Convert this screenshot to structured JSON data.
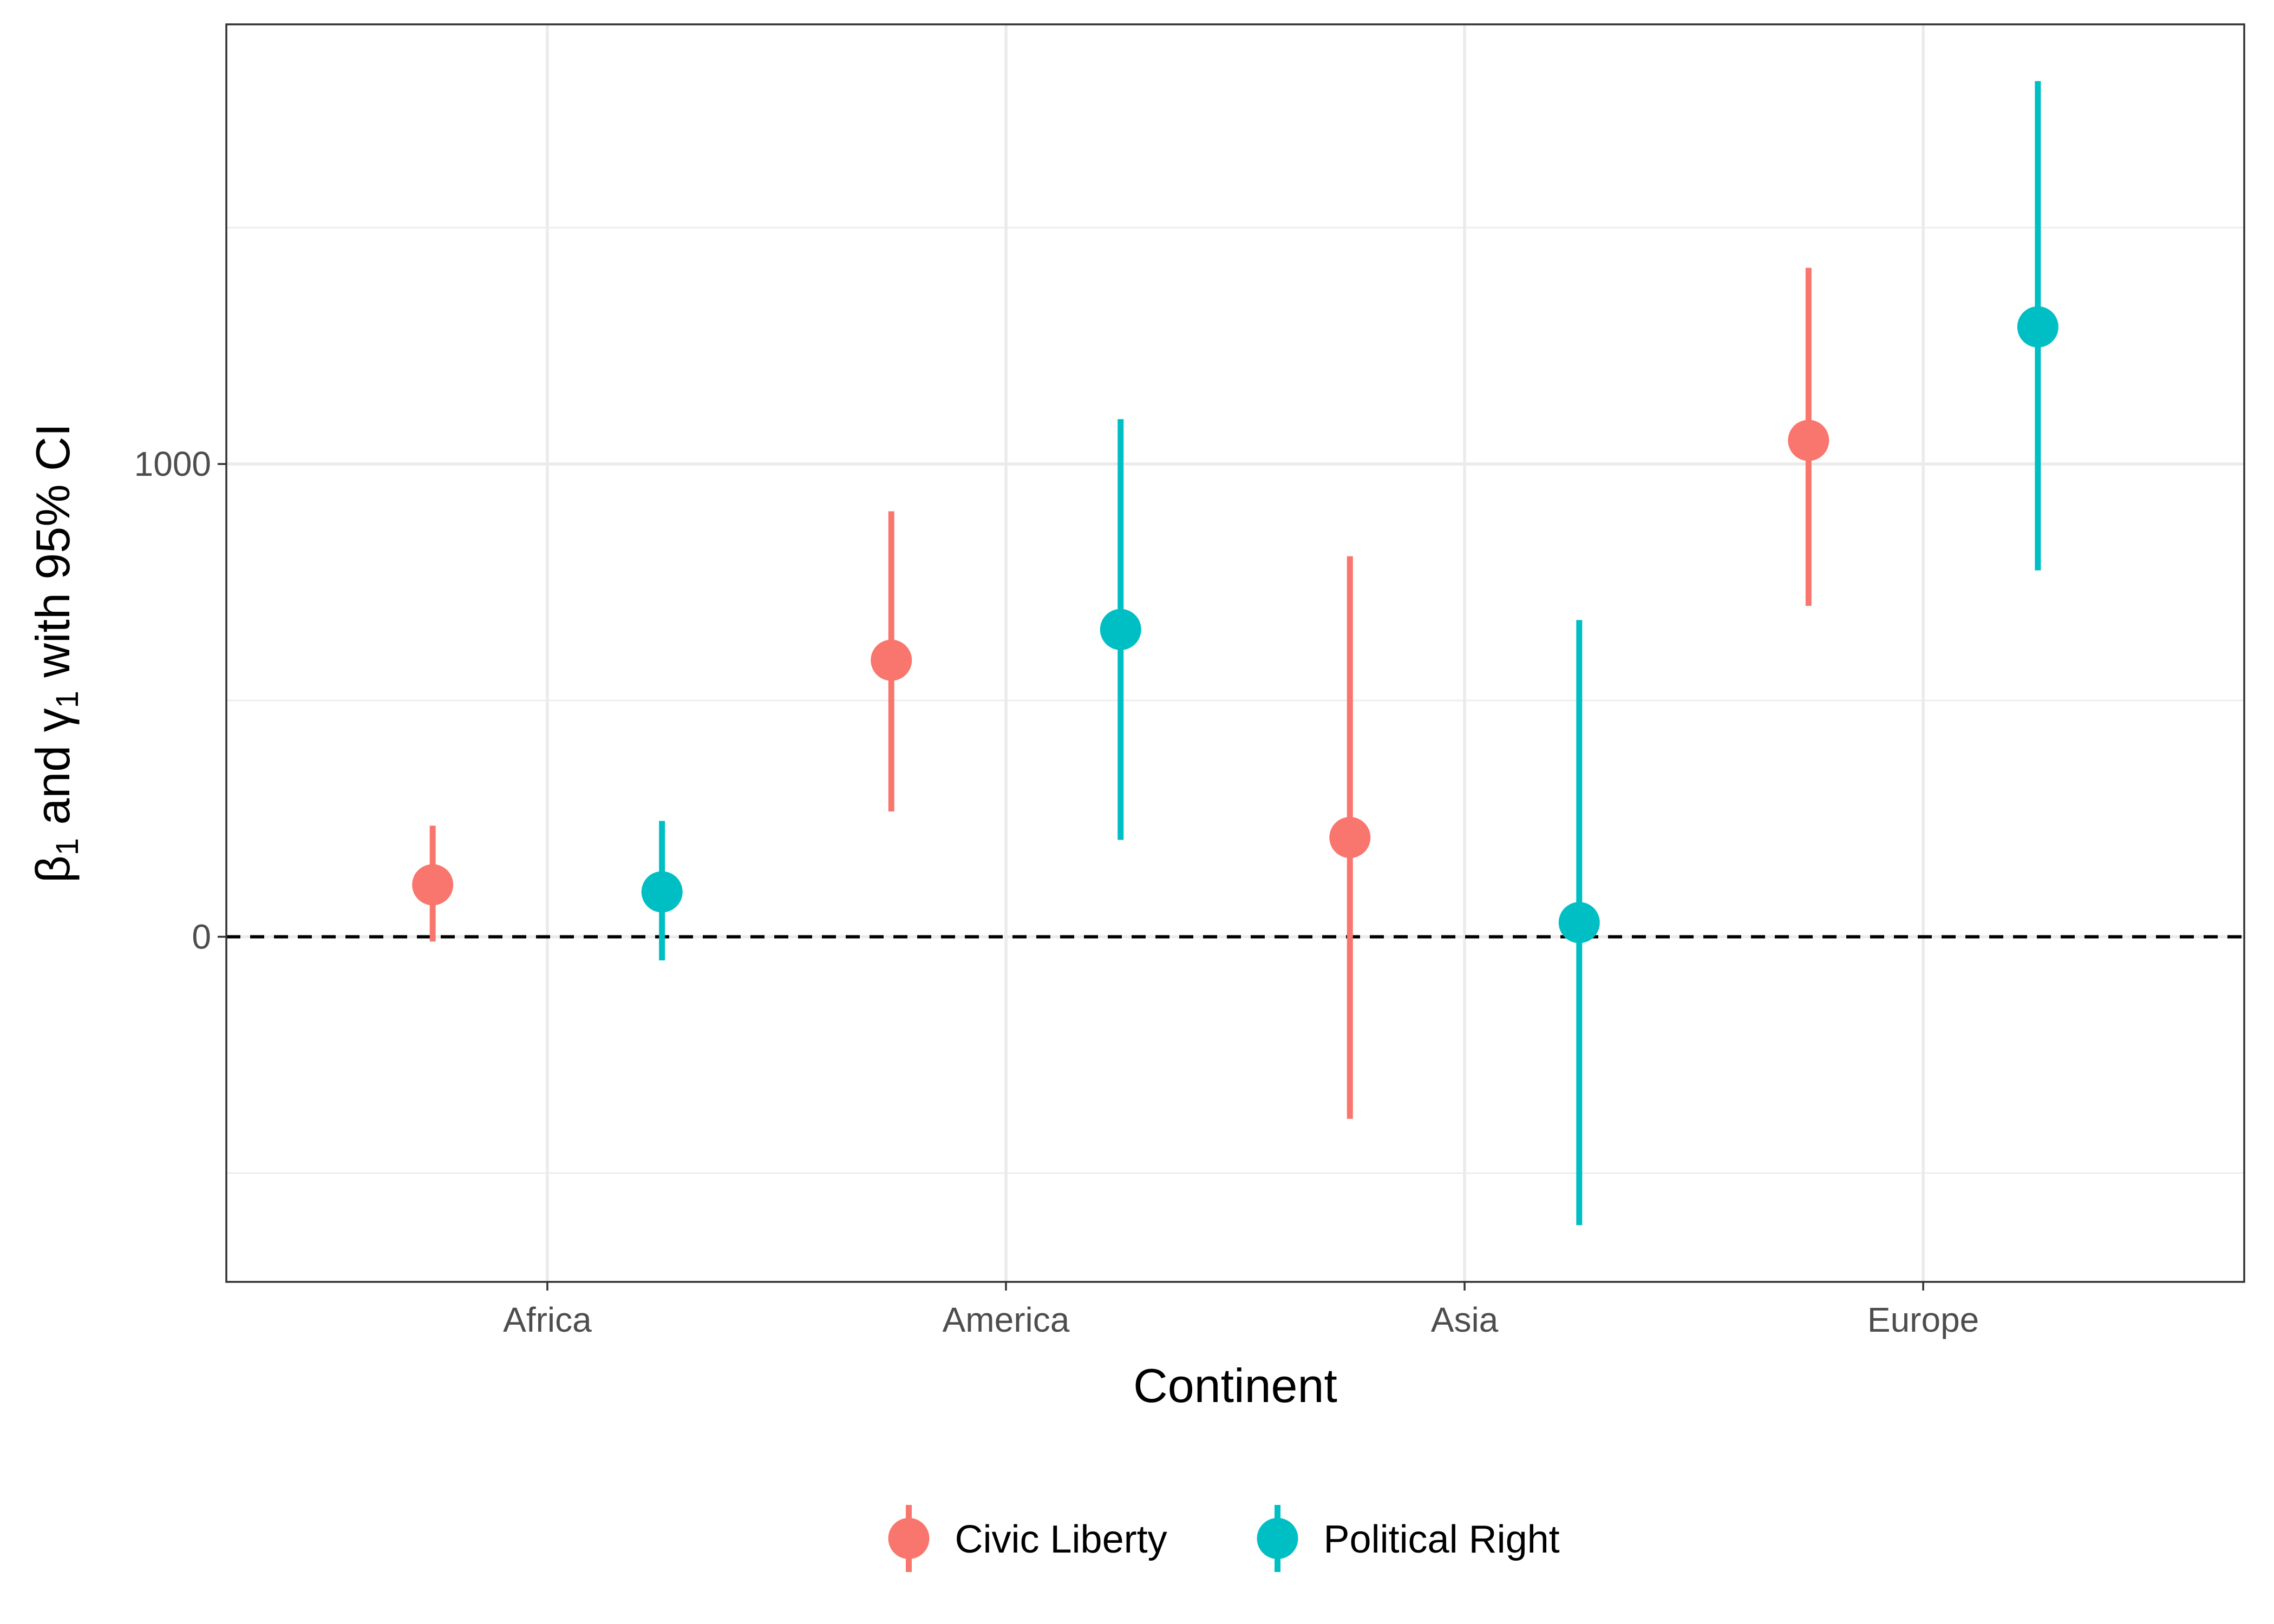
{
  "chart_data": {
    "type": "scatter",
    "subtype": "point-range",
    "title": "",
    "xlabel": "Continent",
    "ylabel_parts": [
      "β",
      "1",
      " and ",
      "γ",
      "1",
      " with 95% CI"
    ],
    "categories": [
      "Africa",
      "America",
      "Asia",
      "Europe"
    ],
    "y_ticks": [
      0,
      1000
    ],
    "y_tick_labels": [
      "0",
      "1000"
    ],
    "ylim": [
      -730,
      1930
    ],
    "reference_line": {
      "y": 0,
      "style": "dashed",
      "color": "#000000"
    },
    "grid": true,
    "legend": {
      "position": "bottom"
    },
    "series": [
      {
        "name": "Civic Liberty",
        "color": "#F8766D",
        "values": [
          110,
          585,
          210,
          1050
        ],
        "lower": [
          -10,
          265,
          -385,
          700
        ],
        "upper": [
          235,
          900,
          805,
          1415
        ]
      },
      {
        "name": "Political Right",
        "color": "#00BFC4",
        "values": [
          95,
          650,
          30,
          1290
        ],
        "lower": [
          -50,
          205,
          -610,
          775
        ],
        "upper": [
          245,
          1095,
          670,
          1810
        ]
      }
    ]
  }
}
